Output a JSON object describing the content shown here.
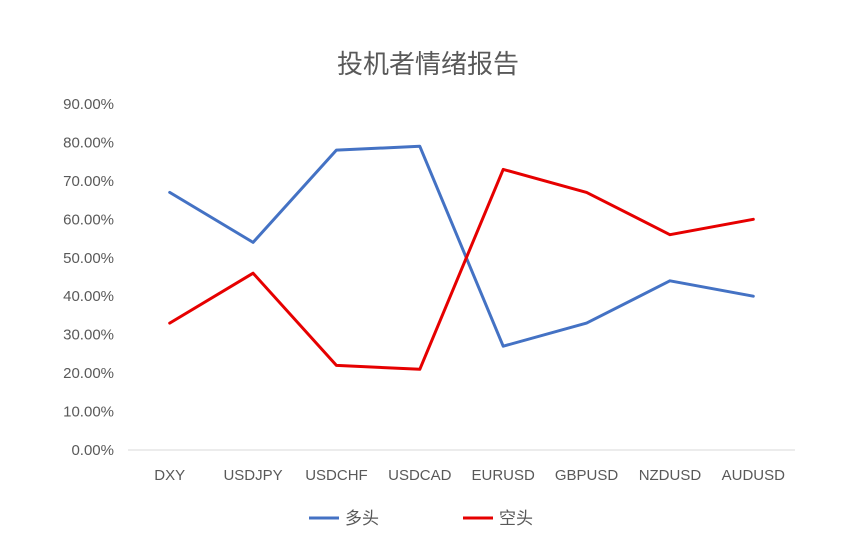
{
  "chart_data": {
    "type": "line",
    "title": "投机者情绪报告",
    "xlabel": "",
    "ylabel": "",
    "categories": [
      "DXY",
      "USDJPY",
      "USDCHF",
      "USDCAD",
      "EURUSD",
      "GBPUSD",
      "NZDUSD",
      "AUDUSD"
    ],
    "y_ticks": [
      "0.00%",
      "10.00%",
      "20.00%",
      "30.00%",
      "40.00%",
      "50.00%",
      "60.00%",
      "70.00%",
      "80.00%",
      "90.00%"
    ],
    "ylim": [
      0,
      90
    ],
    "y_unit": "%",
    "grid": false,
    "legend_position": "bottom",
    "series": [
      {
        "name": "多头",
        "color": "#4472C4",
        "values": [
          67,
          54,
          78,
          79,
          27,
          33,
          44,
          40
        ]
      },
      {
        "name": "空头",
        "color": "#E60000",
        "values": [
          33,
          46,
          22,
          21,
          73,
          67,
          56,
          60
        ]
      }
    ]
  }
}
